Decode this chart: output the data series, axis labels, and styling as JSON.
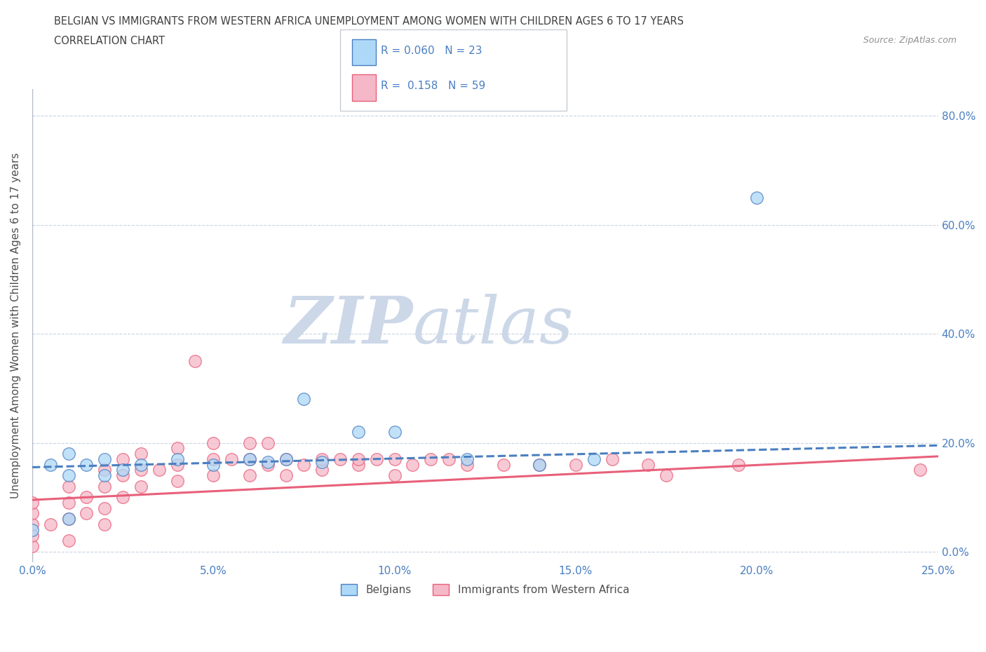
{
  "title_line1": "BELGIAN VS IMMIGRANTS FROM WESTERN AFRICA UNEMPLOYMENT AMONG WOMEN WITH CHILDREN AGES 6 TO 17 YEARS",
  "title_line2": "CORRELATION CHART",
  "source": "Source: ZipAtlas.com",
  "ylabel": "Unemployment Among Women with Children Ages 6 to 17 years",
  "xlim": [
    0.0,
    0.25
  ],
  "ylim": [
    -0.02,
    0.85
  ],
  "xticks": [
    0.0,
    0.05,
    0.1,
    0.15,
    0.2,
    0.25
  ],
  "xtick_labels": [
    "0.0%",
    "5.0%",
    "10.0%",
    "15.0%",
    "20.0%",
    "25.0%"
  ],
  "ytick_labels": [
    "0.0%",
    "20.0%",
    "40.0%",
    "60.0%",
    "80.0%"
  ],
  "yticks": [
    0.0,
    0.2,
    0.4,
    0.6,
    0.8
  ],
  "legend_labels": [
    "Belgians",
    "Immigrants from Western Africa"
  ],
  "r_belgian": "0.060",
  "n_belgian": "23",
  "r_immigrant": "0.158",
  "n_immigrant": "59",
  "belgian_color": "#add8f7",
  "immigrant_color": "#f5b8c8",
  "belgian_line_color": "#4a7fc1",
  "immigrant_line_color": "#e8607a",
  "watermark_zip": "ZIP",
  "watermark_atlas": "atlas",
  "watermark_color": "#ccd8e8",
  "background_color": "#ffffff",
  "belgian_scatter_x": [
    0.0,
    0.005,
    0.01,
    0.01,
    0.01,
    0.015,
    0.02,
    0.02,
    0.025,
    0.03,
    0.04,
    0.05,
    0.06,
    0.065,
    0.07,
    0.075,
    0.08,
    0.09,
    0.1,
    0.12,
    0.14,
    0.155,
    0.2
  ],
  "belgian_scatter_y": [
    0.04,
    0.16,
    0.06,
    0.14,
    0.18,
    0.16,
    0.14,
    0.17,
    0.15,
    0.16,
    0.17,
    0.16,
    0.17,
    0.165,
    0.17,
    0.28,
    0.165,
    0.22,
    0.22,
    0.17,
    0.16,
    0.17,
    0.65
  ],
  "immigrant_scatter_x": [
    0.0,
    0.0,
    0.0,
    0.0,
    0.0,
    0.005,
    0.01,
    0.01,
    0.01,
    0.01,
    0.015,
    0.015,
    0.02,
    0.02,
    0.02,
    0.02,
    0.025,
    0.025,
    0.025,
    0.03,
    0.03,
    0.03,
    0.035,
    0.04,
    0.04,
    0.04,
    0.045,
    0.05,
    0.05,
    0.05,
    0.055,
    0.06,
    0.06,
    0.06,
    0.065,
    0.065,
    0.07,
    0.07,
    0.075,
    0.08,
    0.08,
    0.085,
    0.09,
    0.09,
    0.095,
    0.1,
    0.1,
    0.105,
    0.11,
    0.115,
    0.12,
    0.13,
    0.14,
    0.15,
    0.16,
    0.17,
    0.175,
    0.195,
    0.245
  ],
  "immigrant_scatter_y": [
    0.01,
    0.03,
    0.05,
    0.07,
    0.09,
    0.05,
    0.02,
    0.06,
    0.09,
    0.12,
    0.07,
    0.1,
    0.05,
    0.08,
    0.12,
    0.15,
    0.1,
    0.14,
    0.17,
    0.12,
    0.15,
    0.18,
    0.15,
    0.13,
    0.16,
    0.19,
    0.35,
    0.14,
    0.17,
    0.2,
    0.17,
    0.14,
    0.17,
    0.2,
    0.16,
    0.2,
    0.14,
    0.17,
    0.16,
    0.15,
    0.17,
    0.17,
    0.16,
    0.17,
    0.17,
    0.14,
    0.17,
    0.16,
    0.17,
    0.17,
    0.16,
    0.16,
    0.16,
    0.16,
    0.17,
    0.16,
    0.14,
    0.16,
    0.15
  ],
  "grid_color": "#c8d4e0",
  "title_color": "#404040",
  "axis_label_color": "#505050",
  "tick_color": "#4a7fc1",
  "legend_r_color": "#4a7fc1",
  "belgian_trendline_x": [
    0.0,
    0.25
  ],
  "belgian_trendline_y": [
    0.155,
    0.195
  ],
  "immigrant_trendline_x": [
    0.0,
    0.25
  ],
  "immigrant_trendline_y": [
    0.095,
    0.175
  ]
}
